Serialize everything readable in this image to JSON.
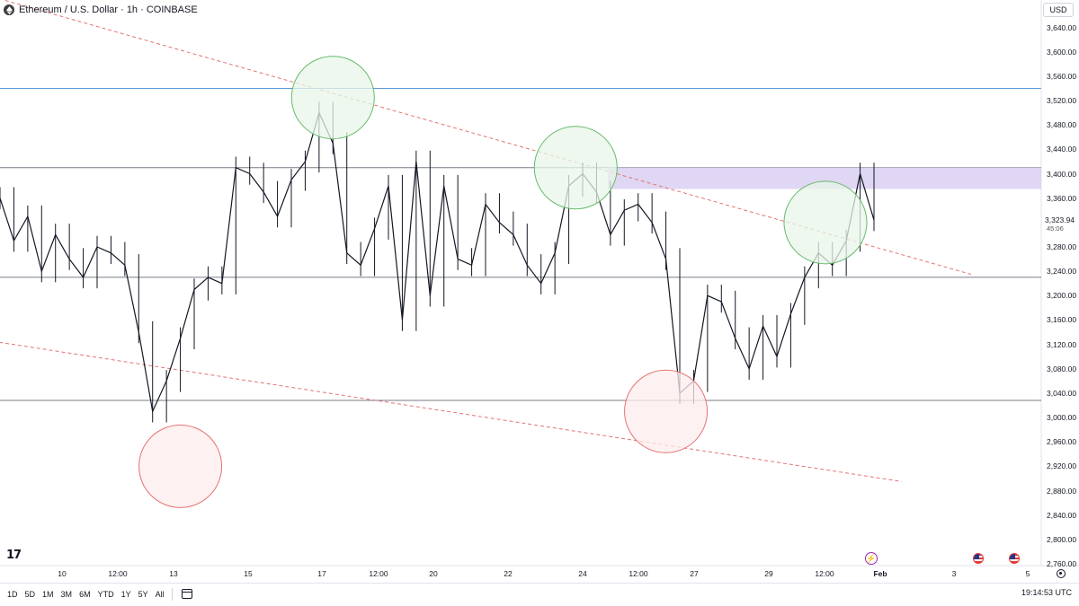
{
  "header": {
    "title": "Ethereum / U.S. Dollar · 1h · COINBASE",
    "currency": "USD"
  },
  "price_axis": {
    "labels": [
      "3,640.00",
      "3,600.00",
      "3,560.00",
      "3,520.00",
      "3,480.00",
      "3,440.00",
      "3,400.00",
      "3,360.00",
      "3,280.00",
      "3,240.00",
      "3,200.00",
      "3,160.00",
      "3,120.00",
      "3,080.00",
      "3,040.00",
      "3,000.00",
      "2,960.00",
      "2,920.00",
      "2,880.00",
      "2,840.00",
      "2,800.00",
      "2,760.00"
    ],
    "values": [
      3640,
      3600,
      3560,
      3520,
      3480,
      3440,
      3400,
      3360,
      3280,
      3240,
      3200,
      3160,
      3120,
      3080,
      3040,
      3000,
      2960,
      2920,
      2880,
      2840,
      2800,
      2760
    ],
    "last_price": "3,323.94",
    "last_price_value": 3323.94,
    "countdown": "45:06"
  },
  "time_axis": [
    {
      "label": "10",
      "bold": false
    },
    {
      "label": "12:00",
      "bold": false
    },
    {
      "label": "13",
      "bold": false
    },
    {
      "label": "15",
      "bold": false
    },
    {
      "label": "17",
      "bold": false
    },
    {
      "label": "12:00",
      "bold": false
    },
    {
      "label": "20",
      "bold": false
    },
    {
      "label": "22",
      "bold": false
    },
    {
      "label": "24",
      "bold": false
    },
    {
      "label": "12:00",
      "bold": false
    },
    {
      "label": "27",
      "bold": false
    },
    {
      "label": "29",
      "bold": false
    },
    {
      "label": "12:00",
      "bold": false
    },
    {
      "label": "Feb",
      "bold": true
    },
    {
      "label": "3",
      "bold": false
    },
    {
      "label": "5",
      "bold": false
    }
  ],
  "toolbar": {
    "ranges": [
      "1D",
      "5D",
      "1M",
      "3M",
      "6M",
      "YTD",
      "1Y",
      "5Y",
      "All"
    ],
    "utc_time": "19:14:53 UTC"
  },
  "logo": "17",
  "chart_data": {
    "type": "candlestick-line",
    "price_range": [
      2760,
      3660
    ],
    "horizontal_levels": [
      {
        "price": 3540,
        "color": "#5b9bd5"
      },
      {
        "price": 3410,
        "color": "#787b86"
      },
      {
        "price": 3230,
        "color": "#787b86"
      },
      {
        "price": 3028,
        "color": "#787b86"
      }
    ],
    "zone": {
      "from": 3375,
      "to": 3410,
      "color": "#d9d0f2"
    },
    "price_series": [
      {
        "t": 0,
        "p": 3360
      },
      {
        "t": 1,
        "p": 3290
      },
      {
        "t": 2,
        "p": 3330
      },
      {
        "t": 3,
        "p": 3240
      },
      {
        "t": 4,
        "p": 3300
      },
      {
        "t": 5,
        "p": 3260
      },
      {
        "t": 6,
        "p": 3230
      },
      {
        "t": 7,
        "p": 3280
      },
      {
        "t": 8,
        "p": 3270
      },
      {
        "t": 9,
        "p": 3250
      },
      {
        "t": 10,
        "p": 3140
      },
      {
        "t": 11,
        "p": 3010
      },
      {
        "t": 12,
        "p": 3060
      },
      {
        "t": 13,
        "p": 3130
      },
      {
        "t": 14,
        "p": 3210
      },
      {
        "t": 15,
        "p": 3230
      },
      {
        "t": 16,
        "p": 3220
      },
      {
        "t": 17,
        "p": 3410
      },
      {
        "t": 18,
        "p": 3400
      },
      {
        "t": 19,
        "p": 3370
      },
      {
        "t": 20,
        "p": 3330
      },
      {
        "t": 21,
        "p": 3390
      },
      {
        "t": 22,
        "p": 3420
      },
      {
        "t": 23,
        "p": 3500
      },
      {
        "t": 24,
        "p": 3450
      },
      {
        "t": 25,
        "p": 3270
      },
      {
        "t": 26,
        "p": 3250
      },
      {
        "t": 27,
        "p": 3310
      },
      {
        "t": 28,
        "p": 3380
      },
      {
        "t": 29,
        "p": 3160
      },
      {
        "t": 30,
        "p": 3420
      },
      {
        "t": 31,
        "p": 3200
      },
      {
        "t": 32,
        "p": 3380
      },
      {
        "t": 33,
        "p": 3260
      },
      {
        "t": 34,
        "p": 3250
      },
      {
        "t": 35,
        "p": 3350
      },
      {
        "t": 36,
        "p": 3320
      },
      {
        "t": 37,
        "p": 3300
      },
      {
        "t": 38,
        "p": 3250
      },
      {
        "t": 39,
        "p": 3220
      },
      {
        "t": 40,
        "p": 3270
      },
      {
        "t": 41,
        "p": 3380
      },
      {
        "t": 42,
        "p": 3400
      },
      {
        "t": 43,
        "p": 3370
      },
      {
        "t": 44,
        "p": 3300
      },
      {
        "t": 45,
        "p": 3340
      },
      {
        "t": 46,
        "p": 3350
      },
      {
        "t": 47,
        "p": 3320
      },
      {
        "t": 48,
        "p": 3260
      },
      {
        "t": 49,
        "p": 3040
      },
      {
        "t": 50,
        "p": 3060
      },
      {
        "t": 51,
        "p": 3200
      },
      {
        "t": 52,
        "p": 3190
      },
      {
        "t": 53,
        "p": 3130
      },
      {
        "t": 54,
        "p": 3080
      },
      {
        "t": 55,
        "p": 3150
      },
      {
        "t": 56,
        "p": 3100
      },
      {
        "t": 57,
        "p": 3170
      },
      {
        "t": 58,
        "p": 3230
      },
      {
        "t": 59,
        "p": 3270
      },
      {
        "t": 60,
        "p": 3250
      },
      {
        "t": 61,
        "p": 3290
      },
      {
        "t": 62,
        "p": 3400
      },
      {
        "t": 63,
        "p": 3324
      }
    ],
    "trendlines": [
      {
        "name": "upper-descending-trendline",
        "from": [
          -0.5,
          3690
        ],
        "to": [
          70,
          3235
        ],
        "style": "dashed",
        "color": "#e57373"
      },
      {
        "name": "lower-descending-trendline",
        "from": [
          -0.5,
          3125
        ],
        "to": [
          65,
          2895
        ],
        "style": "dashed",
        "color": "#e57373"
      }
    ],
    "markers": [
      {
        "name": "resistance-touch-circle-1",
        "t": 24,
        "p": 3525,
        "color": "green"
      },
      {
        "name": "resistance-touch-circle-2",
        "t": 41.5,
        "p": 3410,
        "color": "green"
      },
      {
        "name": "resistance-touch-circle-3",
        "t": 59.5,
        "p": 3320,
        "color": "green"
      },
      {
        "name": "support-touch-circle-1",
        "t": 13,
        "p": 2920,
        "color": "red"
      },
      {
        "name": "support-touch-circle-2",
        "t": 48,
        "p": 3010,
        "color": "red"
      }
    ]
  }
}
